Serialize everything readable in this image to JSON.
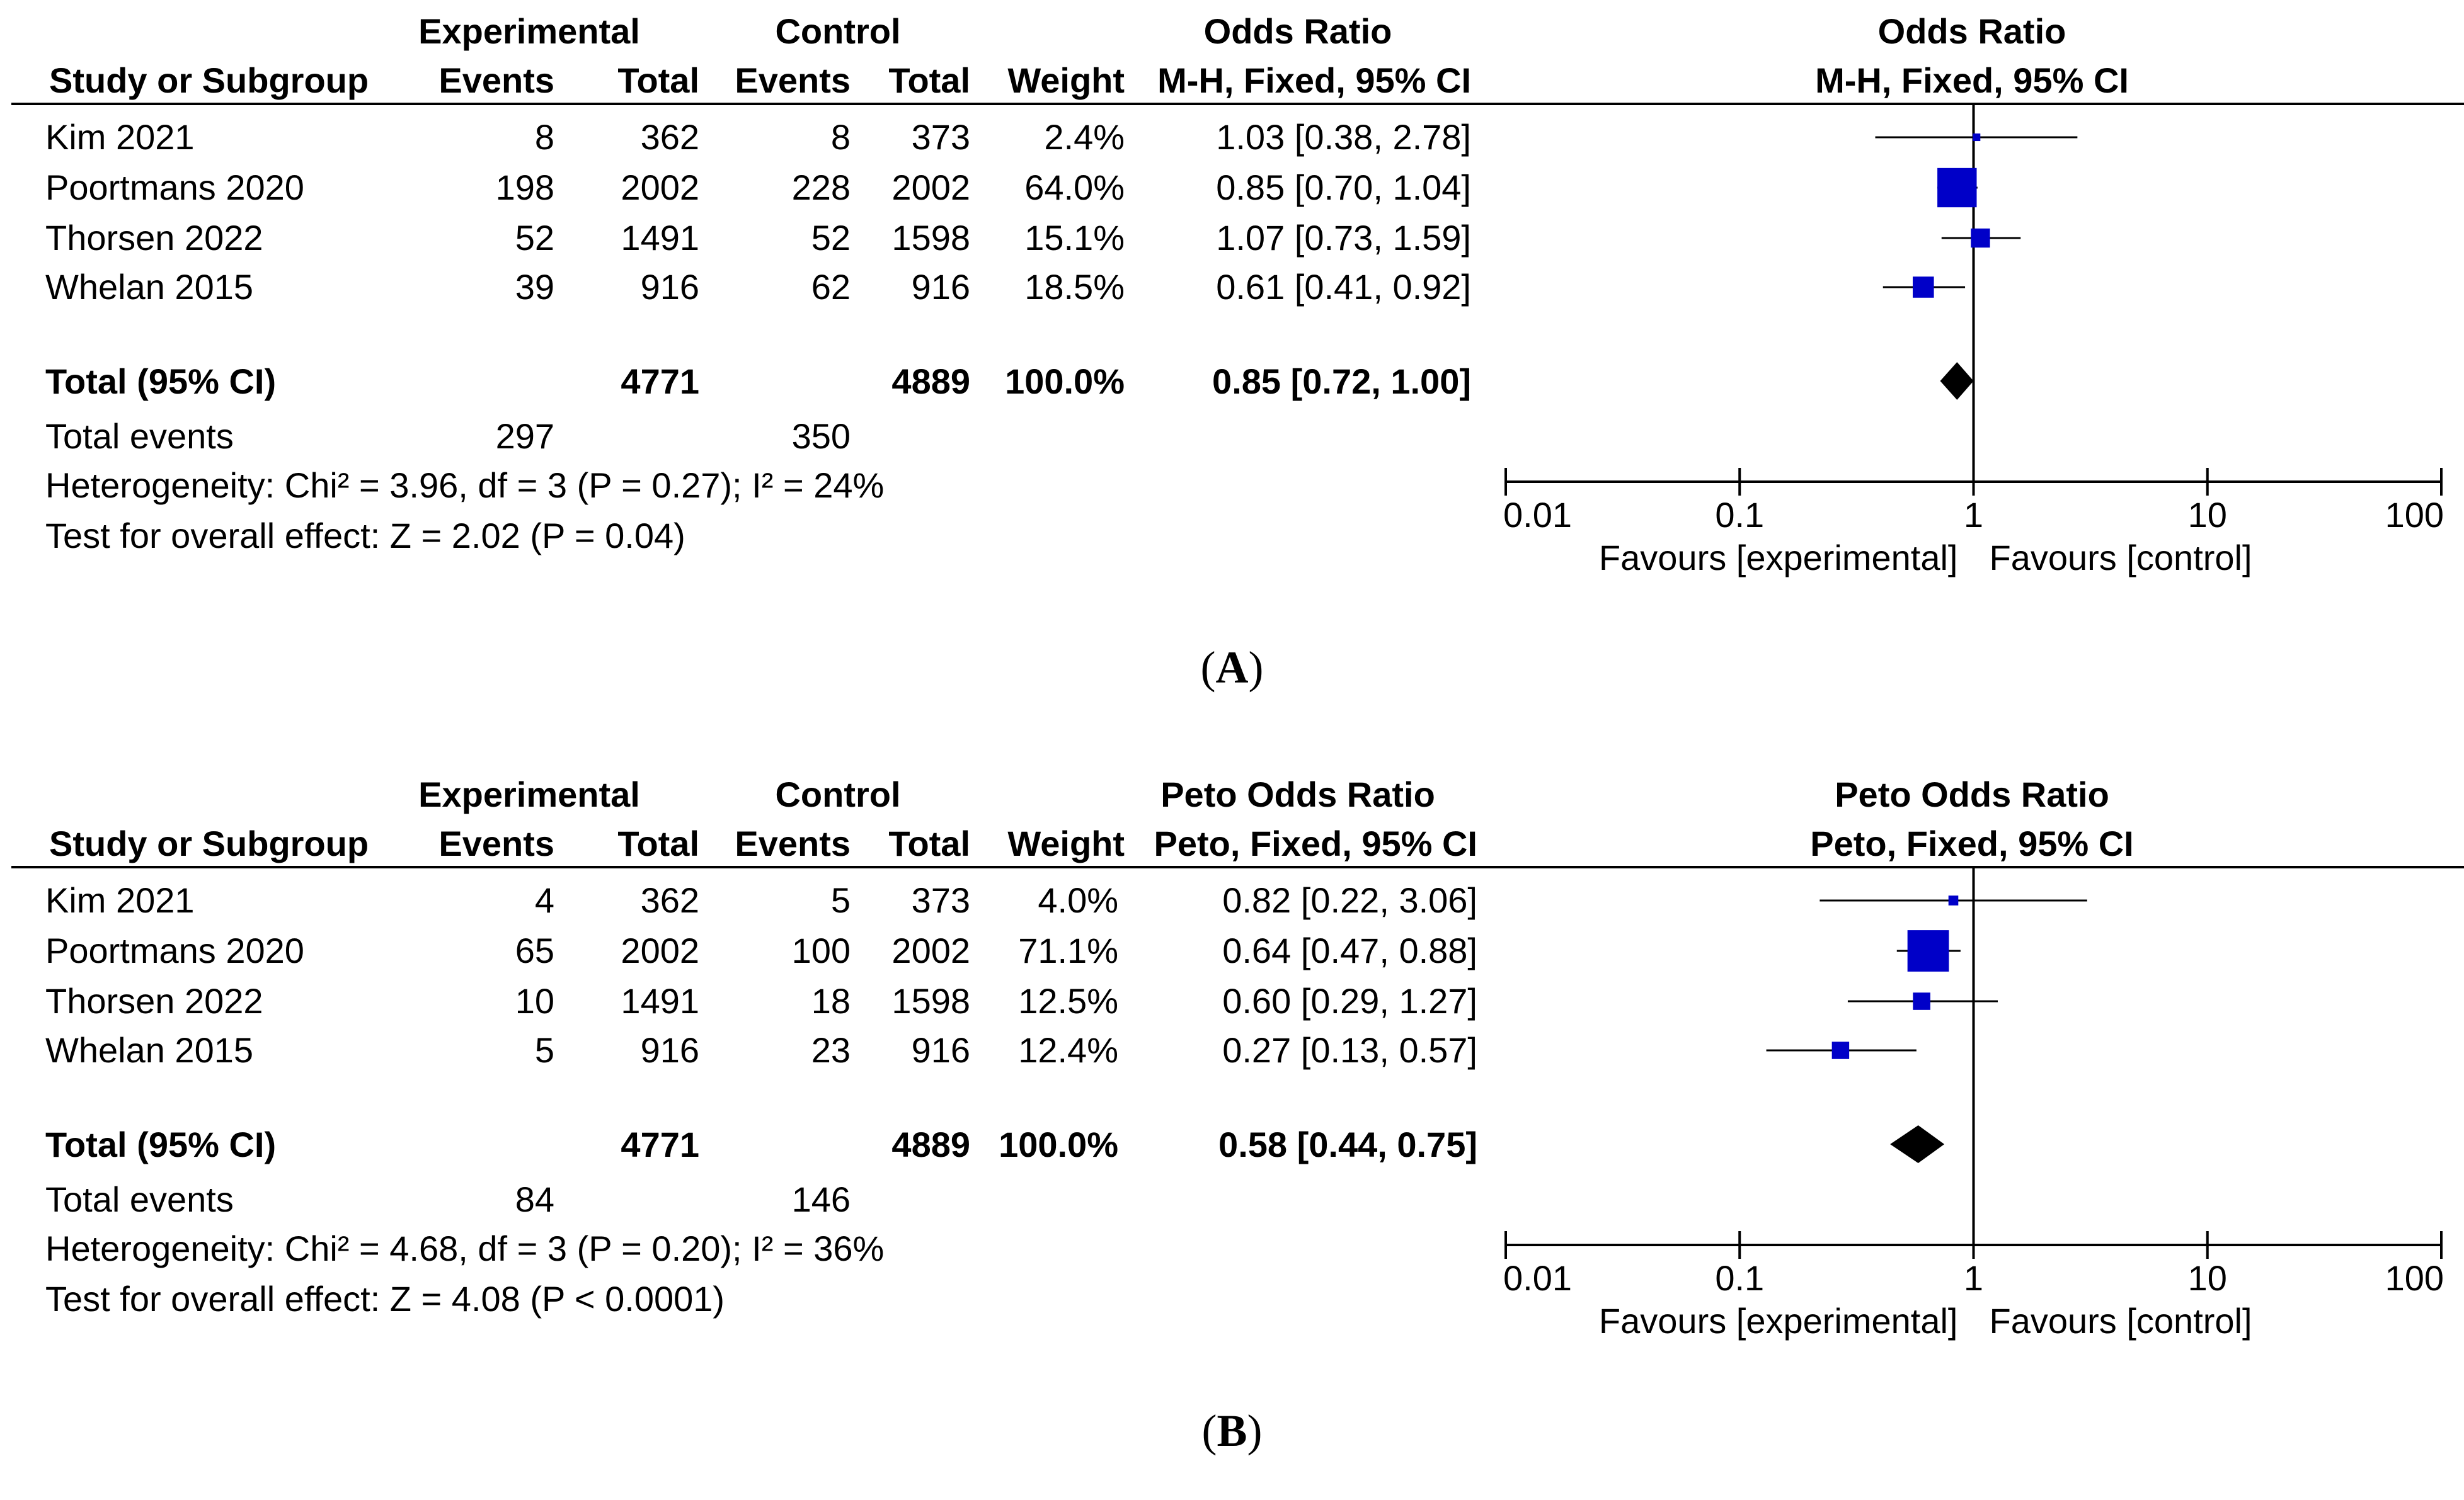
{
  "headers": {
    "study": "Study or Subgroup",
    "experimental": "Experimental",
    "control": "Control",
    "events": "Events",
    "total": "Total",
    "weight": "Weight"
  },
  "colors": {
    "marker": "#0000c8",
    "diamond": "#000000",
    "line": "#000000"
  },
  "panels": [
    {
      "caption_open": "(",
      "caption_letter": "A",
      "caption_close": ")",
      "effect_title": "Odds Ratio",
      "effect_method": "M-H, Fixed, 95% CI",
      "rows": [
        {
          "study": "Kim 2021",
          "exp_events": "8",
          "exp_total": "362",
          "ctl_events": "8",
          "ctl_total": "373",
          "weight": "2.4%",
          "ci_text": "1.03 [0.38, 2.78]"
        },
        {
          "study": "Poortmans 2020",
          "exp_events": "198",
          "exp_total": "2002",
          "ctl_events": "228",
          "ctl_total": "2002",
          "weight": "64.0%",
          "ci_text": "0.85 [0.70, 1.04]"
        },
        {
          "study": "Thorsen 2022",
          "exp_events": "52",
          "exp_total": "1491",
          "ctl_events": "52",
          "ctl_total": "1598",
          "weight": "15.1%",
          "ci_text": "1.07 [0.73, 1.59]"
        },
        {
          "study": "Whelan 2015",
          "exp_events": "39",
          "exp_total": "916",
          "ctl_events": "62",
          "ctl_total": "916",
          "weight": "18.5%",
          "ci_text": "0.61 [0.41, 0.92]"
        }
      ],
      "total": {
        "label": "Total (95% CI)",
        "exp_total": "4771",
        "ctl_total": "4889",
        "weight": "100.0%",
        "ci_text": "0.85 [0.72, 1.00]"
      },
      "total_events": {
        "label": "Total events",
        "exp": "297",
        "ctl": "350"
      },
      "heterogeneity": "Heterogeneity: Chi² = 3.96, df = 3 (P = 0.27); I² = 24%",
      "overall_effect": "Test for overall effect: Z = 2.02 (P = 0.04)",
      "axis_ticks": [
        "0.01",
        "0.1",
        "1",
        "10",
        "100"
      ],
      "favours_left": "Favours [experimental]",
      "favours_right": "Favours [control]"
    },
    {
      "caption_open": "(",
      "caption_letter": "B",
      "caption_close": ")",
      "effect_title": "Peto Odds Ratio",
      "effect_method": "Peto, Fixed, 95% CI",
      "rows": [
        {
          "study": "Kim 2021",
          "exp_events": "4",
          "exp_total": "362",
          "ctl_events": "5",
          "ctl_total": "373",
          "weight": "4.0%",
          "ci_text": "0.82 [0.22, 3.06]"
        },
        {
          "study": "Poortmans 2020",
          "exp_events": "65",
          "exp_total": "2002",
          "ctl_events": "100",
          "ctl_total": "2002",
          "weight": "71.1%",
          "ci_text": "0.64 [0.47, 0.88]"
        },
        {
          "study": "Thorsen 2022",
          "exp_events": "10",
          "exp_total": "1491",
          "ctl_events": "18",
          "ctl_total": "1598",
          "weight": "12.5%",
          "ci_text": "0.60 [0.29, 1.27]"
        },
        {
          "study": "Whelan 2015",
          "exp_events": "5",
          "exp_total": "916",
          "ctl_events": "23",
          "ctl_total": "916",
          "weight": "12.4%",
          "ci_text": "0.27 [0.13, 0.57]"
        }
      ],
      "total": {
        "label": "Total (95% CI)",
        "exp_total": "4771",
        "ctl_total": "4889",
        "weight": "100.0%",
        "ci_text": "0.58 [0.44, 0.75]"
      },
      "total_events": {
        "label": "Total events",
        "exp": "84",
        "ctl": "146"
      },
      "heterogeneity": "Heterogeneity: Chi² = 4.68, df = 3 (P = 0.20); I² = 36%",
      "overall_effect": "Test for overall effect: Z = 4.08 (P < 0.0001)",
      "axis_ticks": [
        "0.01",
        "0.1",
        "1",
        "10",
        "100"
      ],
      "favours_left": "Favours [experimental]",
      "favours_right": "Favours [control]"
    }
  ],
  "chart_data": [
    {
      "type": "forest",
      "title": "Odds Ratio (M-H, Fixed, 95% CI)",
      "scale": "log",
      "xlim": [
        0.01,
        100
      ],
      "xticks": [
        0.01,
        0.1,
        1,
        10,
        100
      ],
      "reference_line": 1,
      "studies": [
        {
          "name": "Kim 2021",
          "or": 1.03,
          "lower": 0.38,
          "upper": 2.78,
          "weight": 2.4
        },
        {
          "name": "Poortmans 2020",
          "or": 0.85,
          "lower": 0.7,
          "upper": 1.04,
          "weight": 64.0
        },
        {
          "name": "Thorsen 2022",
          "or": 1.07,
          "lower": 0.73,
          "upper": 1.59,
          "weight": 15.1
        },
        {
          "name": "Whelan 2015",
          "or": 0.61,
          "lower": 0.41,
          "upper": 0.92,
          "weight": 18.5
        }
      ],
      "pooled": {
        "or": 0.85,
        "lower": 0.72,
        "upper": 1.0
      }
    },
    {
      "type": "forest",
      "title": "Peto Odds Ratio (Peto, Fixed, 95% CI)",
      "scale": "log",
      "xlim": [
        0.01,
        100
      ],
      "xticks": [
        0.01,
        0.1,
        1,
        10,
        100
      ],
      "reference_line": 1,
      "studies": [
        {
          "name": "Kim 2021",
          "or": 0.82,
          "lower": 0.22,
          "upper": 3.06,
          "weight": 4.0
        },
        {
          "name": "Poortmans 2020",
          "or": 0.64,
          "lower": 0.47,
          "upper": 0.88,
          "weight": 71.1
        },
        {
          "name": "Thorsen 2022",
          "or": 0.6,
          "lower": 0.29,
          "upper": 1.27,
          "weight": 12.5
        },
        {
          "name": "Whelan 2015",
          "or": 0.27,
          "lower": 0.13,
          "upper": 0.57,
          "weight": 12.4
        }
      ],
      "pooled": {
        "or": 0.58,
        "lower": 0.44,
        "upper": 0.75
      }
    }
  ]
}
